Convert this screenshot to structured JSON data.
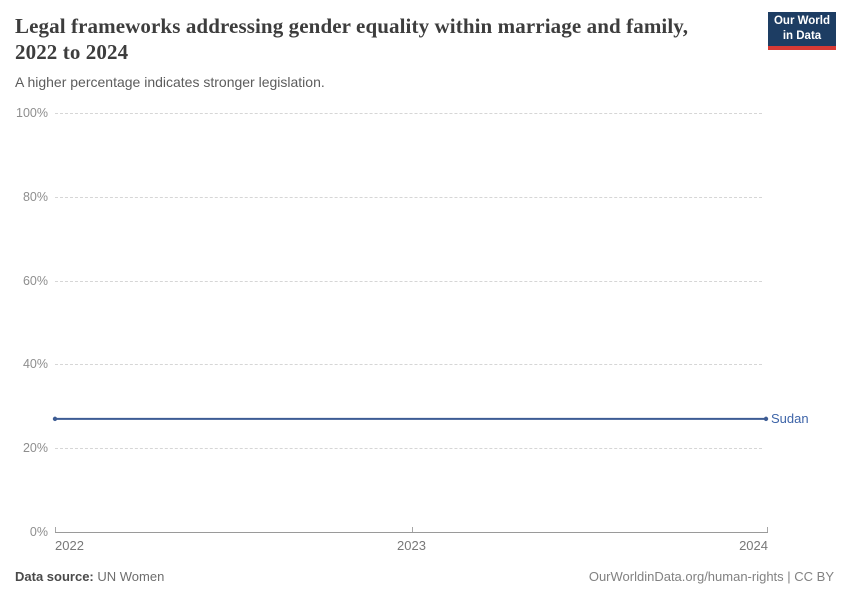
{
  "header": {
    "title": "Legal frameworks addressing gender equality within marriage and family, 2022 to 2024",
    "subtitle": "A higher percentage indicates stronger legislation.",
    "logo_line1": "Our World",
    "logo_line2": "in Data"
  },
  "chart_data": {
    "type": "line",
    "title": "Legal frameworks addressing gender equality within marriage and family, 2022 to 2024",
    "subtitle": "A higher percentage indicates stronger legislation.",
    "xlabel": "",
    "ylabel": "",
    "xlim": [
      2022,
      2024
    ],
    "ylim": [
      0,
      100
    ],
    "grid": "horizontal-dashed",
    "legend_position": "end-of-line-label",
    "x": [
      2022,
      2023,
      2024
    ],
    "series": [
      {
        "name": "Sudan",
        "values": [
          27,
          27,
          27
        ],
        "color": "#3d5c94"
      }
    ],
    "yticks": [
      {
        "value": 100,
        "label": "100%"
      },
      {
        "value": 80,
        "label": "80%"
      },
      {
        "value": 60,
        "label": "60%"
      },
      {
        "value": 40,
        "label": "40%"
      },
      {
        "value": 20,
        "label": "20%"
      },
      {
        "value": 0,
        "label": "0%"
      }
    ],
    "xticks": [
      {
        "value": 2022,
        "label": "2022",
        "align": "left"
      },
      {
        "value": 2023,
        "label": "2023",
        "align": "center"
      },
      {
        "value": 2024,
        "label": "2024",
        "align": "right"
      }
    ]
  },
  "footer": {
    "source_label": "Data source:",
    "source_value": "UN Women",
    "credit": "OurWorldinData.org/human-rights | CC BY"
  },
  "colors": {
    "line": "#3d5c94",
    "series_label": "#3d64a8",
    "logo_bg": "#1d3d63",
    "logo_stripe": "#d73a35",
    "grid": "#d6d6d6",
    "axis": "#9a9a9a",
    "tick_text": "#8e8e8e",
    "title_text": "#3d3d3d",
    "subtitle_text": "#5c5c5c"
  }
}
